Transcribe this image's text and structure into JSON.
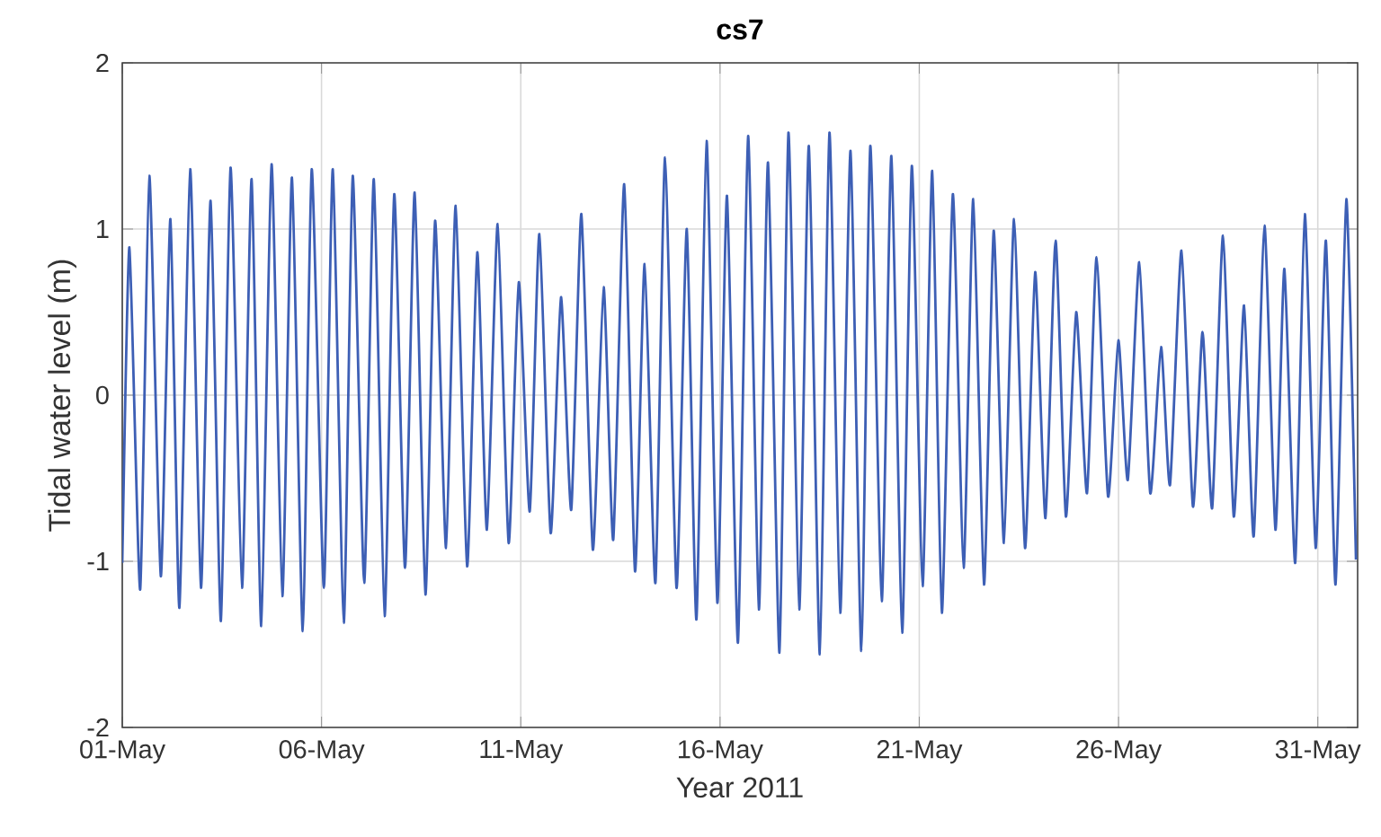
{
  "chart_data": {
    "type": "line",
    "title": "cs7",
    "xlabel": "Year 2011",
    "ylabel": "Tidal water level (m)",
    "grid": true,
    "xlim": [
      "2011-05-01",
      "2011-06-01"
    ],
    "ylim": [
      -2,
      2
    ],
    "yticks": [
      -2,
      -1,
      0,
      1,
      2
    ],
    "xticks": [
      {
        "value": "2011-05-01",
        "label": "01-May"
      },
      {
        "value": "2011-05-06",
        "label": "06-May"
      },
      {
        "value": "2011-05-11",
        "label": "11-May"
      },
      {
        "value": "2011-05-16",
        "label": "16-May"
      },
      {
        "value": "2011-05-21",
        "label": "21-May"
      },
      {
        "value": "2011-05-26",
        "label": "26-May"
      },
      {
        "value": "2011-05-31",
        "label": "31-May"
      }
    ],
    "x": [
      "2011-05-01T00:00",
      "2011-05-01T04:18",
      "2011-05-01T10:48",
      "2011-05-01T16:18",
      "2011-05-01T23:12",
      "2011-05-02T05:00",
      "2011-05-02T10:24",
      "2011-05-02T16:54",
      "2011-05-02T23:24",
      "2011-05-03T05:12",
      "2011-05-03T11:24",
      "2011-05-03T17:12",
      "2011-05-04T00:06",
      "2011-05-04T05:54",
      "2011-05-04T11:42",
      "2011-05-04T17:54",
      "2011-05-05T00:24",
      "2011-05-05T06:12",
      "2011-05-05T12:42",
      "2011-05-05T18:06",
      "2011-05-06T01:24",
      "2011-05-06T06:48",
      "2011-05-06T13:24",
      "2011-05-06T18:48",
      "2011-05-07T01:42",
      "2011-05-07T07:30",
      "2011-05-07T14:00",
      "2011-05-07T19:48",
      "2011-05-08T02:18",
      "2011-05-08T08:06",
      "2011-05-08T14:36",
      "2011-05-08T20:24",
      "2011-05-09T03:00",
      "2011-05-09T08:48",
      "2011-05-09T15:42",
      "2011-05-09T21:48",
      "2011-05-10T03:36",
      "2011-05-10T10:06",
      "2011-05-10T16:42",
      "2011-05-10T22:48",
      "2011-05-11T05:24",
      "2011-05-11T11:12",
      "2011-05-11T18:00",
      "2011-05-12T00:12",
      "2011-05-12T06:24",
      "2011-05-12T12:30",
      "2011-05-12T19:24",
      "2011-05-13T01:54",
      "2011-05-13T07:42",
      "2011-05-13T14:18",
      "2011-05-13T20:48",
      "2011-05-14T02:36",
      "2011-05-14T09:06",
      "2011-05-14T14:54",
      "2011-05-14T21:48",
      "2011-05-15T04:00",
      "2011-05-15T09:48",
      "2011-05-15T15:54",
      "2011-05-15T22:24",
      "2011-05-16T04:12",
      "2011-05-16T10:48",
      "2011-05-16T16:54",
      "2011-05-16T23:24",
      "2011-05-17T04:54",
      "2011-05-17T11:48",
      "2011-05-17T17:12",
      "2011-05-17T23:42",
      "2011-05-18T05:30",
      "2011-05-18T12:06",
      "2011-05-18T17:54",
      "2011-05-19T00:24",
      "2011-05-19T06:36",
      "2011-05-19T13:06",
      "2011-05-19T18:30",
      "2011-05-20T01:24",
      "2011-05-20T07:12",
      "2011-05-20T13:42",
      "2011-05-20T19:30",
      "2011-05-21T02:00",
      "2011-05-21T07:48",
      "2011-05-21T13:36",
      "2011-05-21T20:12",
      "2011-05-22T02:42",
      "2011-05-22T08:30",
      "2011-05-22T15:00",
      "2011-05-22T20:48",
      "2011-05-23T03:00",
      "2011-05-23T09:06",
      "2011-05-23T15:42",
      "2011-05-23T21:48",
      "2011-05-24T04:00",
      "2011-05-24T10:06",
      "2011-05-24T16:18",
      "2011-05-24T22:30",
      "2011-05-25T05:00",
      "2011-05-25T10:48",
      "2011-05-25T17:42",
      "2011-05-25T23:54",
      "2011-05-26T05:36",
      "2011-05-26T12:30",
      "2011-05-26T19:06",
      "2011-05-27T01:36",
      "2011-05-27T07:00",
      "2011-05-27T13:54",
      "2011-05-27T20:48",
      "2011-05-28T02:36",
      "2011-05-28T08:24",
      "2011-05-28T14:54",
      "2011-05-28T21:24",
      "2011-05-29T03:36",
      "2011-05-29T09:24",
      "2011-05-29T15:54",
      "2011-05-29T22:30",
      "2011-05-30T03:54",
      "2011-05-30T10:24",
      "2011-05-30T16:12",
      "2011-05-30T22:42",
      "2011-05-31T04:54",
      "2011-05-31T10:42",
      "2011-05-31T17:12",
      "2011-05-31T23:00"
    ],
    "series": [
      {
        "color": "#3d5fb5",
        "values": [
          -1.01,
          0.89,
          -1.17,
          1.32,
          -1.09,
          1.06,
          -1.28,
          1.36,
          -1.16,
          1.17,
          -1.36,
          1.37,
          -1.16,
          1.3,
          -1.39,
          1.39,
          -1.21,
          1.31,
          -1.42,
          1.36,
          -1.16,
          1.36,
          -1.37,
          1.32,
          -1.13,
          1.3,
          -1.33,
          1.21,
          -1.04,
          1.22,
          -1.2,
          1.05,
          -0.92,
          1.14,
          -1.03,
          0.86,
          -0.81,
          1.03,
          -0.89,
          0.68,
          -0.7,
          0.97,
          -0.83,
          0.59,
          -0.69,
          1.09,
          -0.93,
          0.65,
          -0.87,
          1.27,
          -1.06,
          0.79,
          -1.13,
          1.43,
          -1.16,
          1.0,
          -1.35,
          1.53,
          -1.25,
          1.2,
          -1.49,
          1.56,
          -1.29,
          1.4,
          -1.55,
          1.58,
          -1.29,
          1.5,
          -1.56,
          1.58,
          -1.31,
          1.47,
          -1.54,
          1.5,
          -1.24,
          1.44,
          -1.43,
          1.38,
          -1.15,
          1.35,
          -1.31,
          1.21,
          -1.04,
          1.18,
          -1.14,
          0.99,
          -0.89,
          1.06,
          -0.92,
          0.74,
          -0.74,
          0.93,
          -0.73,
          0.5,
          -0.59,
          0.83,
          -0.61,
          0.33,
          -0.51,
          0.8,
          -0.59,
          0.29,
          -0.54,
          0.87,
          -0.67,
          0.38,
          -0.68,
          0.96,
          -0.73,
          0.54,
          -0.85,
          1.02,
          -0.81,
          0.76,
          -1.01,
          1.09,
          -0.92,
          0.93,
          -1.14,
          1.18,
          -0.99
        ]
      }
    ]
  }
}
